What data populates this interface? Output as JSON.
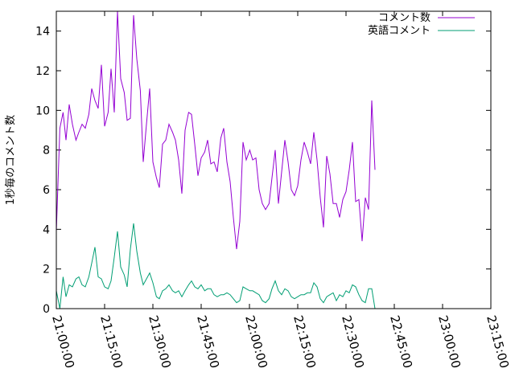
{
  "chart_data": {
    "type": "line",
    "title": "",
    "xlabel": "",
    "ylabel": "1秒毎のコメント数",
    "x_tick_labels": [
      "21:00:00",
      "21:15:00",
      "21:30:00",
      "21:45:00",
      "22:00:00",
      "22:15:00",
      "22:30:00",
      "22:45:00",
      "23:00:00",
      "23:15:00"
    ],
    "x_ticks_minutes": [
      0,
      15,
      30,
      45,
      60,
      75,
      90,
      105,
      120,
      135
    ],
    "xlim_minutes": [
      0,
      135
    ],
    "ylim": [
      0,
      15
    ],
    "y_ticks": [
      0,
      2,
      4,
      6,
      8,
      10,
      12,
      14
    ],
    "grid": false,
    "legend_position": "top-right",
    "series": [
      {
        "name": "コメント数",
        "color": "#9400d3",
        "points": [
          [
            0.0,
            3.9
          ],
          [
            1.1,
            9.1
          ],
          [
            2.1,
            9.9
          ],
          [
            3.0,
            8.5
          ],
          [
            4.0,
            10.3
          ],
          [
            5.0,
            9.3
          ],
          [
            6.1,
            8.5
          ],
          [
            7.0,
            8.9
          ],
          [
            8.0,
            9.3
          ],
          [
            9.0,
            9.1
          ],
          [
            10.1,
            9.8
          ],
          [
            11.0,
            11.1
          ],
          [
            12.0,
            10.5
          ],
          [
            13.0,
            10.1
          ],
          [
            14.0,
            12.3
          ],
          [
            15.0,
            9.2
          ],
          [
            16.1,
            9.9
          ],
          [
            17.0,
            12.1
          ],
          [
            18.0,
            9.9
          ],
          [
            19.0,
            15.0
          ],
          [
            20.0,
            11.6
          ],
          [
            21.1,
            10.9
          ],
          [
            22.0,
            9.5
          ],
          [
            23.0,
            9.6
          ],
          [
            24.0,
            14.8
          ],
          [
            25.0,
            12.6
          ],
          [
            26.1,
            11.0
          ],
          [
            27.0,
            7.4
          ],
          [
            28.0,
            9.3
          ],
          [
            29.0,
            11.1
          ],
          [
            30.0,
            7.4
          ],
          [
            31.1,
            6.6
          ],
          [
            32.0,
            6.1
          ],
          [
            33.0,
            8.3
          ],
          [
            34.0,
            8.5
          ],
          [
            35.0,
            9.3
          ],
          [
            36.1,
            8.9
          ],
          [
            37.0,
            8.5
          ],
          [
            38.0,
            7.5
          ],
          [
            39.0,
            5.8
          ],
          [
            40.0,
            9.0
          ],
          [
            41.1,
            9.9
          ],
          [
            42.0,
            9.8
          ],
          [
            43.0,
            8.3
          ],
          [
            44.0,
            6.7
          ],
          [
            45.0,
            7.6
          ],
          [
            46.1,
            7.9
          ],
          [
            47.0,
            8.5
          ],
          [
            48.0,
            7.3
          ],
          [
            49.0,
            7.4
          ],
          [
            50.0,
            6.9
          ],
          [
            51.1,
            8.6
          ],
          [
            52.0,
            9.1
          ],
          [
            53.0,
            7.4
          ],
          [
            54.0,
            6.4
          ],
          [
            55.0,
            4.6
          ],
          [
            56.0,
            3.0
          ],
          [
            57.0,
            4.4
          ],
          [
            58.0,
            8.4
          ],
          [
            59.0,
            7.5
          ],
          [
            60.1,
            8.0
          ],
          [
            61.0,
            7.5
          ],
          [
            62.0,
            7.6
          ],
          [
            63.0,
            6.0
          ],
          [
            64.0,
            5.3
          ],
          [
            65.0,
            5.0
          ],
          [
            66.1,
            5.3
          ],
          [
            67.0,
            6.6
          ],
          [
            68.0,
            8.0
          ],
          [
            69.0,
            5.3
          ],
          [
            70.0,
            6.9
          ],
          [
            71.0,
            8.5
          ],
          [
            72.0,
            7.4
          ],
          [
            73.0,
            6.0
          ],
          [
            74.0,
            5.7
          ],
          [
            75.0,
            6.2
          ],
          [
            76.0,
            7.5
          ],
          [
            77.0,
            8.4
          ],
          [
            78.0,
            7.9
          ],
          [
            79.0,
            7.3
          ],
          [
            80.0,
            8.9
          ],
          [
            81.0,
            7.5
          ],
          [
            82.0,
            5.6
          ],
          [
            83.0,
            4.1
          ],
          [
            84.0,
            7.7
          ],
          [
            85.0,
            6.8
          ],
          [
            86.0,
            5.3
          ],
          [
            87.0,
            5.3
          ],
          [
            88.0,
            4.6
          ],
          [
            89.0,
            5.5
          ],
          [
            90.0,
            5.9
          ],
          [
            91.0,
            7.0
          ],
          [
            92.0,
            8.4
          ],
          [
            93.0,
            5.4
          ],
          [
            94.0,
            5.5
          ],
          [
            95.0,
            3.4
          ],
          [
            96.0,
            5.6
          ],
          [
            97.0,
            5.0
          ],
          [
            98.0,
            10.5
          ],
          [
            99.0,
            7.0
          ]
        ]
      },
      {
        "name": "英語コメント",
        "color": "#009e73",
        "points": [
          [
            0.0,
            0.9
          ],
          [
            1.1,
            0.0
          ],
          [
            2.1,
            1.6
          ],
          [
            3.0,
            0.6
          ],
          [
            4.0,
            1.2
          ],
          [
            5.0,
            1.1
          ],
          [
            6.1,
            1.5
          ],
          [
            7.0,
            1.6
          ],
          [
            8.0,
            1.2
          ],
          [
            9.0,
            1.1
          ],
          [
            10.1,
            1.6
          ],
          [
            11.0,
            2.3
          ],
          [
            12.0,
            3.1
          ],
          [
            13.0,
            1.6
          ],
          [
            14.0,
            1.5
          ],
          [
            15.0,
            1.1
          ],
          [
            16.1,
            1.0
          ],
          [
            17.0,
            1.4
          ],
          [
            18.0,
            2.6
          ],
          [
            19.0,
            3.9
          ],
          [
            20.0,
            2.1
          ],
          [
            21.1,
            1.7
          ],
          [
            22.0,
            1.1
          ],
          [
            23.0,
            3.0
          ],
          [
            24.0,
            4.3
          ],
          [
            25.0,
            2.9
          ],
          [
            26.1,
            1.8
          ],
          [
            27.0,
            1.2
          ],
          [
            28.0,
            1.5
          ],
          [
            29.0,
            1.8
          ],
          [
            30.0,
            1.3
          ],
          [
            31.1,
            0.6
          ],
          [
            32.0,
            0.5
          ],
          [
            33.0,
            0.9
          ],
          [
            34.0,
            1.0
          ],
          [
            35.0,
            1.2
          ],
          [
            36.1,
            0.9
          ],
          [
            37.0,
            0.8
          ],
          [
            38.0,
            0.9
          ],
          [
            39.0,
            0.6
          ],
          [
            40.0,
            0.9
          ],
          [
            41.1,
            1.2
          ],
          [
            42.0,
            1.4
          ],
          [
            43.0,
            1.1
          ],
          [
            44.0,
            1.0
          ],
          [
            45.0,
            1.2
          ],
          [
            46.1,
            0.9
          ],
          [
            47.0,
            1.0
          ],
          [
            48.0,
            1.0
          ],
          [
            49.0,
            0.7
          ],
          [
            50.0,
            0.6
          ],
          [
            51.1,
            0.7
          ],
          [
            52.0,
            0.7
          ],
          [
            53.0,
            0.8
          ],
          [
            54.0,
            0.7
          ],
          [
            55.0,
            0.5
          ],
          [
            56.0,
            0.3
          ],
          [
            57.0,
            0.4
          ],
          [
            58.0,
            1.1
          ],
          [
            59.0,
            1.0
          ],
          [
            60.1,
            0.9
          ],
          [
            61.0,
            0.9
          ],
          [
            62.0,
            0.8
          ],
          [
            63.0,
            0.7
          ],
          [
            64.0,
            0.4
          ],
          [
            65.0,
            0.3
          ],
          [
            66.1,
            0.5
          ],
          [
            67.0,
            1.0
          ],
          [
            68.0,
            1.4
          ],
          [
            69.0,
            0.9
          ],
          [
            70.0,
            0.7
          ],
          [
            71.0,
            1.0
          ],
          [
            72.0,
            0.9
          ],
          [
            73.0,
            0.6
          ],
          [
            74.0,
            0.5
          ],
          [
            75.0,
            0.6
          ],
          [
            76.0,
            0.7
          ],
          [
            77.0,
            0.7
          ],
          [
            78.0,
            0.8
          ],
          [
            79.0,
            0.8
          ],
          [
            80.0,
            1.3
          ],
          [
            81.0,
            1.1
          ],
          [
            82.0,
            0.5
          ],
          [
            83.0,
            0.3
          ],
          [
            84.0,
            0.6
          ],
          [
            85.0,
            0.7
          ],
          [
            86.0,
            0.8
          ],
          [
            87.0,
            0.4
          ],
          [
            88.0,
            0.7
          ],
          [
            89.0,
            0.6
          ],
          [
            90.0,
            0.9
          ],
          [
            91.0,
            0.8
          ],
          [
            92.0,
            1.2
          ],
          [
            93.0,
            1.1
          ],
          [
            94.0,
            0.7
          ],
          [
            95.0,
            0.4
          ],
          [
            96.0,
            0.3
          ],
          [
            97.0,
            1.0
          ],
          [
            98.0,
            1.0
          ],
          [
            99.0,
            0.0
          ]
        ]
      }
    ]
  }
}
